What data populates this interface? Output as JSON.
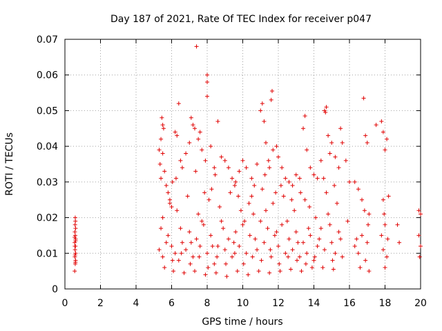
{
  "chart_data": {
    "type": "scatter",
    "title": "Day 187 of 2021, Rate Of TEC Index for receiver p047",
    "xlabel": "GPS time / hours",
    "ylabel": "ROTI / TECUs",
    "xlim": [
      0,
      20
    ],
    "ylim": [
      0,
      0.07
    ],
    "x_ticks": [
      0,
      2,
      4,
      6,
      8,
      10,
      12,
      14,
      16,
      18,
      20
    ],
    "x_tick_labels": [
      "0",
      "2",
      "4",
      "6",
      "8",
      "10",
      "12",
      "14",
      "16",
      "18",
      "20"
    ],
    "y_ticks": [
      0,
      0.01,
      0.02,
      0.03,
      0.04,
      0.05,
      0.06,
      0.07
    ],
    "y_tick_labels": [
      "0",
      "0.01",
      "0.02",
      "0.03",
      "0.04",
      "0.05",
      "0.06",
      "0.07"
    ],
    "grid": true,
    "marker": "plus",
    "color": "#e00000",
    "series": [
      {
        "name": "ROTI p047",
        "points": [
          [
            0.55,
            0.005
          ],
          [
            0.58,
            0.007
          ],
          [
            0.6,
            0.008
          ],
          [
            0.56,
            0.009
          ],
          [
            0.6,
            0.01
          ],
          [
            0.57,
            0.011
          ],
          [
            0.59,
            0.012
          ],
          [
            0.55,
            0.013
          ],
          [
            0.6,
            0.014
          ],
          [
            0.58,
            0.015
          ],
          [
            0.56,
            0.016
          ],
          [
            0.6,
            0.017
          ],
          [
            0.57,
            0.018
          ],
          [
            0.59,
            0.019
          ],
          [
            0.58,
            0.02
          ],
          [
            0.56,
            0.012
          ],
          [
            0.6,
            0.0135
          ],
          [
            0.57,
            0.0095
          ],
          [
            0.59,
            0.0075
          ],
          [
            0.55,
            0.0145
          ],
          [
            5.3,
            0.039
          ],
          [
            5.35,
            0.035
          ],
          [
            5.4,
            0.031
          ],
          [
            5.45,
            0.048
          ],
          [
            5.5,
            0.046
          ],
          [
            5.55,
            0.045
          ],
          [
            5.4,
            0.042
          ],
          [
            5.5,
            0.038
          ],
          [
            5.6,
            0.033
          ],
          [
            5.7,
            0.029
          ],
          [
            5.8,
            0.027
          ],
          [
            5.9,
            0.025
          ],
          [
            6.0,
            0.023
          ],
          [
            6.05,
            0.03
          ],
          [
            6.2,
            0.044
          ],
          [
            6.3,
            0.043
          ],
          [
            6.4,
            0.052
          ],
          [
            6.5,
            0.036
          ],
          [
            6.6,
            0.034
          ],
          [
            6.8,
            0.038
          ],
          [
            7.0,
            0.041
          ],
          [
            7.1,
            0.048
          ],
          [
            7.2,
            0.046
          ],
          [
            7.3,
            0.045
          ],
          [
            7.4,
            0.068
          ],
          [
            7.5,
            0.042
          ],
          [
            7.6,
            0.044
          ],
          [
            7.7,
            0.039
          ],
          [
            7.9,
            0.036
          ],
          [
            8.0,
            0.054
          ],
          [
            8.0,
            0.058
          ],
          [
            8.0,
            0.06
          ],
          [
            8.2,
            0.04
          ],
          [
            8.4,
            0.034
          ],
          [
            8.6,
            0.047
          ],
          [
            8.8,
            0.037
          ],
          [
            9.0,
            0.036
          ],
          [
            9.2,
            0.034
          ],
          [
            9.4,
            0.031
          ],
          [
            9.6,
            0.03
          ],
          [
            9.8,
            0.033
          ],
          [
            10.0,
            0.036
          ],
          [
            10.2,
            0.034
          ],
          [
            10.5,
            0.031
          ],
          [
            10.8,
            0.035
          ],
          [
            11.0,
            0.05
          ],
          [
            11.1,
            0.052
          ],
          [
            11.2,
            0.047
          ],
          [
            11.3,
            0.041
          ],
          [
            11.5,
            0.034
          ],
          [
            11.6,
            0.053
          ],
          [
            11.65,
            0.0555
          ],
          [
            11.7,
            0.039
          ],
          [
            11.9,
            0.04
          ],
          [
            12.0,
            0.037
          ],
          [
            12.2,
            0.034
          ],
          [
            12.4,
            0.031
          ],
          [
            12.6,
            0.03
          ],
          [
            12.8,
            0.029
          ],
          [
            13.0,
            0.032
          ],
          [
            13.2,
            0.031
          ],
          [
            13.4,
            0.045
          ],
          [
            13.5,
            0.0485
          ],
          [
            13.6,
            0.039
          ],
          [
            13.8,
            0.034
          ],
          [
            14.0,
            0.032
          ],
          [
            14.2,
            0.031
          ],
          [
            14.4,
            0.036
          ],
          [
            14.6,
            0.05
          ],
          [
            14.65,
            0.0495
          ],
          [
            14.7,
            0.051
          ],
          [
            14.8,
            0.043
          ],
          [
            14.9,
            0.038
          ],
          [
            15.0,
            0.041
          ],
          [
            15.2,
            0.037
          ],
          [
            15.4,
            0.034
          ],
          [
            15.5,
            0.045
          ],
          [
            15.6,
            0.041
          ],
          [
            15.8,
            0.036
          ],
          [
            16.0,
            0.03
          ],
          [
            16.3,
            0.03
          ],
          [
            16.5,
            0.028
          ],
          [
            16.7,
            0.025
          ],
          [
            16.8,
            0.0535
          ],
          [
            16.9,
            0.043
          ],
          [
            17.0,
            0.041
          ],
          [
            17.1,
            0.021
          ],
          [
            17.5,
            0.046
          ],
          [
            17.8,
            0.047
          ],
          [
            17.9,
            0.044
          ],
          [
            18.0,
            0.039
          ],
          [
            18.1,
            0.042
          ],
          [
            18.2,
            0.026
          ],
          [
            18.7,
            0.018
          ],
          [
            18.8,
            0.013
          ],
          [
            19.9,
            0.022
          ],
          [
            20.0,
            0.021
          ],
          [
            19.9,
            0.015
          ],
          [
            20.0,
            0.012
          ],
          [
            19.95,
            0.009
          ],
          [
            5.5,
            0.02
          ],
          [
            5.8,
            0.015
          ],
          [
            6.0,
            0.012
          ],
          [
            6.2,
            0.01
          ],
          [
            6.4,
            0.008
          ],
          [
            6.6,
            0.013
          ],
          [
            6.8,
            0.011
          ],
          [
            7.0,
            0.016
          ],
          [
            7.2,
            0.009
          ],
          [
            7.4,
            0.014
          ],
          [
            7.6,
            0.012
          ],
          [
            7.8,
            0.018
          ],
          [
            8.0,
            0.01
          ],
          [
            8.2,
            0.015
          ],
          [
            8.4,
            0.007
          ],
          [
            8.6,
            0.012
          ],
          [
            8.8,
            0.019
          ],
          [
            9.0,
            0.011
          ],
          [
            9.2,
            0.014
          ],
          [
            9.4,
            0.009
          ],
          [
            9.6,
            0.016
          ],
          [
            9.8,
            0.012
          ],
          [
            10.0,
            0.018
          ],
          [
            10.2,
            0.01
          ],
          [
            10.4,
            0.015
          ],
          [
            10.6,
            0.021
          ],
          [
            10.8,
            0.011
          ],
          [
            11.0,
            0.019
          ],
          [
            11.2,
            0.013
          ],
          [
            11.4,
            0.017
          ],
          [
            11.6,
            0.009
          ],
          [
            11.8,
            0.015
          ],
          [
            12.0,
            0.012
          ],
          [
            12.2,
            0.018
          ],
          [
            12.4,
            0.01
          ],
          [
            12.6,
            0.014
          ],
          [
            12.8,
            0.011
          ],
          [
            13.0,
            0.016
          ],
          [
            13.2,
            0.009
          ],
          [
            13.4,
            0.013
          ],
          [
            13.6,
            0.01
          ],
          [
            13.8,
            0.015
          ],
          [
            14.0,
            0.008
          ],
          [
            14.2,
            0.012
          ],
          [
            14.4,
            0.017
          ],
          [
            14.6,
            0.011
          ],
          [
            14.8,
            0.021
          ],
          [
            15.0,
            0.013
          ],
          [
            15.2,
            0.01
          ],
          [
            15.4,
            0.016
          ],
          [
            15.6,
            0.009
          ],
          [
            16.3,
            0.012
          ],
          [
            16.5,
            0.01
          ],
          [
            16.7,
            0.015
          ],
          [
            16.9,
            0.008
          ],
          [
            17.0,
            0.013
          ],
          [
            17.8,
            0.015
          ],
          [
            17.9,
            0.011
          ],
          [
            18.0,
            0.018
          ],
          [
            18.1,
            0.009
          ],
          [
            5.6,
            0.006
          ],
          [
            6.1,
            0.005
          ],
          [
            6.7,
            0.0045
          ],
          [
            7.3,
            0.005
          ],
          [
            7.9,
            0.004
          ],
          [
            8.5,
            0.0045
          ],
          [
            9.1,
            0.0035
          ],
          [
            9.7,
            0.005
          ],
          [
            10.3,
            0.004
          ],
          [
            10.9,
            0.005
          ],
          [
            11.5,
            0.0045
          ],
          [
            12.1,
            0.005
          ],
          [
            12.7,
            0.0055
          ],
          [
            13.3,
            0.005
          ],
          [
            13.9,
            0.006
          ],
          [
            14.5,
            0.006
          ],
          [
            15.1,
            0.0055
          ],
          [
            16.6,
            0.006
          ],
          [
            17.1,
            0.005
          ],
          [
            18.0,
            0.006
          ],
          [
            5.4,
            0.017
          ],
          [
            5.9,
            0.024
          ],
          [
            6.3,
            0.022
          ],
          [
            6.9,
            0.026
          ],
          [
            7.5,
            0.021
          ],
          [
            8.1,
            0.025
          ],
          [
            8.7,
            0.023
          ],
          [
            9.3,
            0.027
          ],
          [
            9.9,
            0.022
          ],
          [
            10.5,
            0.026
          ],
          [
            11.1,
            0.028
          ],
          [
            11.7,
            0.024
          ],
          [
            12.3,
            0.026
          ],
          [
            12.9,
            0.022
          ],
          [
            13.5,
            0.025
          ],
          [
            14.1,
            0.02
          ],
          [
            14.7,
            0.027
          ],
          [
            15.3,
            0.024
          ],
          [
            15.9,
            0.019
          ],
          [
            17.9,
            0.025
          ],
          [
            5.7,
            0.013
          ],
          [
            6.5,
            0.017
          ],
          [
            7.1,
            0.013
          ],
          [
            7.7,
            0.019
          ],
          [
            8.3,
            0.012
          ],
          [
            8.9,
            0.017
          ],
          [
            9.5,
            0.013
          ],
          [
            10.1,
            0.019
          ],
          [
            10.7,
            0.014
          ],
          [
            11.3,
            0.022
          ],
          [
            11.9,
            0.016
          ],
          [
            12.5,
            0.019
          ],
          [
            13.1,
            0.013
          ],
          [
            13.7,
            0.017
          ],
          [
            14.3,
            0.014
          ],
          [
            14.9,
            0.018
          ],
          [
            15.5,
            0.014
          ],
          [
            16.4,
            0.014
          ],
          [
            17.05,
            0.018
          ],
          [
            18.15,
            0.014
          ],
          [
            5.3,
            0.011
          ],
          [
            5.5,
            0.009
          ],
          [
            6.05,
            0.008
          ],
          [
            6.55,
            0.01
          ],
          [
            7.05,
            0.007
          ],
          [
            7.55,
            0.009
          ],
          [
            8.05,
            0.006
          ],
          [
            8.55,
            0.009
          ],
          [
            9.05,
            0.007
          ],
          [
            9.55,
            0.01
          ],
          [
            10.05,
            0.007
          ],
          [
            10.55,
            0.009
          ],
          [
            11.05,
            0.008
          ],
          [
            11.55,
            0.011
          ],
          [
            12.05,
            0.007
          ],
          [
            12.55,
            0.009
          ],
          [
            13.05,
            0.008
          ],
          [
            13.55,
            0.007
          ],
          [
            14.05,
            0.009
          ],
          [
            15.05,
            0.008
          ],
          [
            6.25,
            0.031
          ],
          [
            7.35,
            0.033
          ],
          [
            8.45,
            0.032
          ],
          [
            9.55,
            0.029
          ],
          [
            10.65,
            0.029
          ],
          [
            11.25,
            0.032
          ],
          [
            11.45,
            0.036
          ],
          [
            12.15,
            0.029
          ],
          [
            13.25,
            0.027
          ],
          [
            14.55,
            0.031
          ],
          [
            15.15,
            0.029
          ],
          [
            16.85,
            0.022
          ],
          [
            17.95,
            0.021
          ],
          [
            8.25,
            0.028
          ],
          [
            9.75,
            0.026
          ],
          [
            10.35,
            0.024
          ],
          [
            11.85,
            0.027
          ],
          [
            13.75,
            0.023
          ],
          [
            12.75,
            0.025
          ],
          [
            7.85,
            0.027
          ]
        ]
      }
    ]
  }
}
